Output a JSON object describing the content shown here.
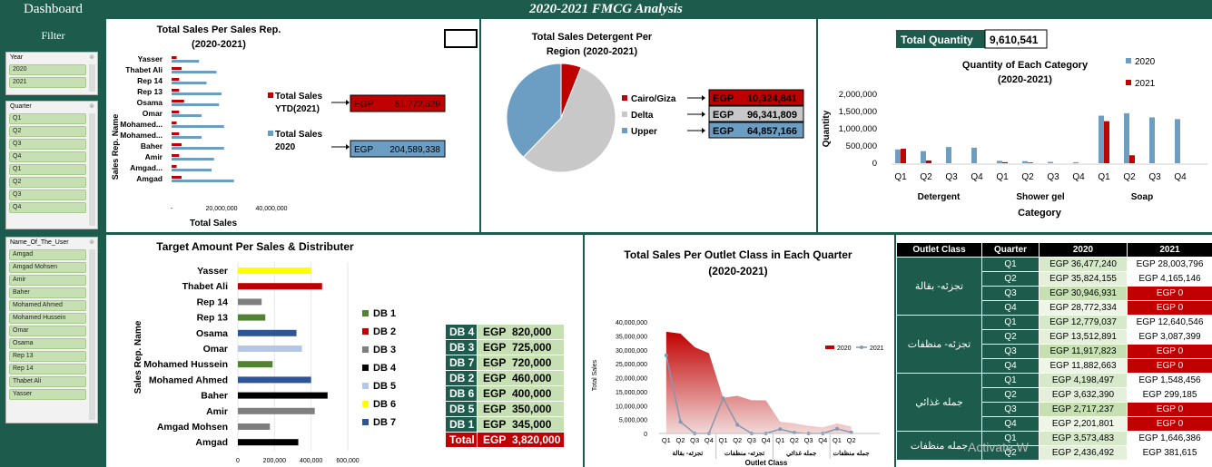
{
  "header": {
    "dashboard_label": "Dashboard",
    "title": "2020-2021 FMCG Analysis"
  },
  "filter": {
    "title": "Filter",
    "year": {
      "label": "Year",
      "items": [
        "2020",
        "2021"
      ]
    },
    "quarter": {
      "label": "Quarter",
      "items": [
        "Q1",
        "Q2",
        "Q3",
        "Q4",
        "Q1",
        "Q2",
        "Q3",
        "Q4"
      ]
    },
    "user": {
      "label": "Name_Of_The_User",
      "items": [
        "Amgad",
        "Amgad Mohsen",
        "Amir",
        "Baher",
        "Mohamed Ahmed",
        "Mohamed Hussein",
        "Omar",
        "Osama",
        "Rep 13",
        "Rep 14",
        "Thabet Ali",
        "Yasser"
      ]
    }
  },
  "colors": {
    "dark_green": "#1d5c4d",
    "red": "#c00000",
    "blue": "#6c9ec4",
    "grey": "#c8c8c8",
    "light_green": "#c6e0b4"
  },
  "kpi": {
    "ytd_label": "Total Sales YTD(2021)",
    "ytd_label_1": "Total Sales",
    "ytd_label_2": "YTD(2021)",
    "ytd_currency": "EGP",
    "ytd_value": "51,772,529",
    "s2020_label_1": "Total Sales",
    "s2020_label_2": "2020",
    "s2020_currency": "EGP",
    "s2020_value": "204,589,338",
    "total_quantity_label": "Total Quantity",
    "total_quantity_value": "9,610,541"
  },
  "region_boxes": [
    {
      "label": "Cairo/Giza",
      "currency": "EGP",
      "value": "10,324,841"
    },
    {
      "label": "Delta",
      "currency": "EGP",
      "value": "96,341,809"
    },
    {
      "label": "Upper",
      "currency": "EGP",
      "value": "64,857,166"
    }
  ],
  "db_table": {
    "rows": [
      {
        "key": "DB 4",
        "currency": "EGP",
        "value": "820,000"
      },
      {
        "key": "DB 3",
        "currency": "EGP",
        "value": "725,000"
      },
      {
        "key": "DB 7",
        "currency": "EGP",
        "value": "720,000"
      },
      {
        "key": "DB 2",
        "currency": "EGP",
        "value": "460,000"
      },
      {
        "key": "DB 6",
        "currency": "EGP",
        "value": "400,000"
      },
      {
        "key": "DB 5",
        "currency": "EGP",
        "value": "350,000"
      },
      {
        "key": "DB 1",
        "currency": "EGP",
        "value": "345,000"
      }
    ],
    "total": {
      "key": "Total",
      "currency": "EGP",
      "value": "3,820,000"
    }
  },
  "outlet_table": {
    "headers": [
      "Outlet Class",
      "Quarter",
      "2020",
      "2021"
    ],
    "groups": [
      {
        "class": "تجزئه- بقالة",
        "rows": [
          {
            "q": "Q1",
            "v2020": "EGP 36,477,240",
            "v2021": "EGP 28,003,796"
          },
          {
            "q": "Q2",
            "v2020": "EGP 35,824,155",
            "v2021": "EGP 4,165,146"
          },
          {
            "q": "Q3",
            "v2020": "EGP 30,946,931",
            "v2021": "EGP 0"
          },
          {
            "q": "Q4",
            "v2020": "EGP 28,772,334",
            "v2021": "EGP 0"
          }
        ]
      },
      {
        "class": "تجزئه- منظفات",
        "rows": [
          {
            "q": "Q1",
            "v2020": "EGP 12,779,037",
            "v2021": "EGP 12,640,546"
          },
          {
            "q": "Q2",
            "v2020": "EGP 13,512,891",
            "v2021": "EGP 3,087,399"
          },
          {
            "q": "Q3",
            "v2020": "EGP 11,917,823",
            "v2021": "EGP 0"
          },
          {
            "q": "Q4",
            "v2020": "EGP 11,882,663",
            "v2021": "EGP 0"
          }
        ]
      },
      {
        "class": "جمله غذائي",
        "rows": [
          {
            "q": "Q1",
            "v2020": "EGP 4,198,497",
            "v2021": "EGP 1,548,456"
          },
          {
            "q": "Q2",
            "v2020": "EGP 3,632,390",
            "v2021": "EGP 299,185"
          },
          {
            "q": "Q3",
            "v2020": "EGP 2,717,237",
            "v2021": "EGP 0"
          },
          {
            "q": "Q4",
            "v2020": "EGP 2,201,801",
            "v2021": "EGP 0"
          }
        ]
      },
      {
        "class": "جمله منظفات",
        "rows": [
          {
            "q": "Q1",
            "v2020": "EGP 3,573,483",
            "v2021": "EGP 1,646,386"
          },
          {
            "q": "Q2",
            "v2020": "EGP 2,436,492",
            "v2021": "EGP 381,615"
          }
        ]
      }
    ]
  },
  "watermark": "Activate W",
  "chart_data": [
    {
      "type": "bar",
      "orientation": "horizontal",
      "title": "Total Sales Per Sales Rep.",
      "subtitle": "(2020-2021)",
      "xlabel": "Total Sales",
      "ylabel": "Sales Rep. Name",
      "categories": [
        "Yasser",
        "Thabet Ali",
        "Rep 14",
        "Rep 13",
        "Osama",
        "Omar",
        "Mohamed...",
        "Mohamed...",
        "Baher",
        "Amir",
        "Amgad...",
        "Amgad"
      ],
      "xlim": [
        0,
        40000000
      ],
      "xticks": [
        "-",
        "20,000,000",
        "40,000,000"
      ],
      "xtick_values": [
        0,
        20000000,
        40000000
      ],
      "series": [
        {
          "name": "Total Sales YTD(2021)",
          "color": "#c00000",
          "values": [
            2000000,
            4000000,
            3000000,
            3000000,
            5000000,
            3000000,
            2000000,
            3000000,
            4000000,
            3000000,
            2000000,
            4000000
          ]
        },
        {
          "name": "Total Sales 2020",
          "color": "#6c9ec4",
          "values": [
            11000000,
            18000000,
            14000000,
            20000000,
            19000000,
            12000000,
            21000000,
            12000000,
            21000000,
            17000000,
            16000000,
            25000000
          ]
        }
      ]
    },
    {
      "type": "pie",
      "title": "Total Sales Detergent Per",
      "subtitle": "Region (2020-2021)",
      "labels": [
        "Cairo/Giza",
        "Delta",
        "Upper"
      ],
      "values": [
        10324841,
        96341809,
        64857166
      ],
      "colors": [
        "#c00000",
        "#c8c8c8",
        "#6c9ec4"
      ]
    },
    {
      "type": "bar",
      "title": "Quantity of Each Category",
      "subtitle": "(2020-2021)",
      "xlabel": "Category",
      "ylabel": "Quantity",
      "groups": [
        "Detergent",
        "Shower gel",
        "Soap"
      ],
      "quarters": [
        "Q1",
        "Q2",
        "Q3",
        "Q4"
      ],
      "ylim": [
        0,
        2000000
      ],
      "yticks": [
        "0",
        "500,000",
        "1,000,000",
        "1,500,000",
        "2,000,000"
      ],
      "ytick_values": [
        0,
        500000,
        1000000,
        1500000,
        2000000
      ],
      "series": [
        {
          "name": "2020",
          "color": "#6c9ec4",
          "values": [
            400000,
            350000,
            470000,
            450000,
            70000,
            60000,
            40000,
            30000,
            1380000,
            1450000,
            1330000,
            1280000
          ]
        },
        {
          "name": "2021",
          "color": "#c00000",
          "values": [
            420000,
            80000,
            0,
            0,
            30000,
            20000,
            0,
            0,
            1220000,
            230000,
            0,
            0
          ]
        }
      ]
    },
    {
      "type": "bar",
      "orientation": "horizontal",
      "title": "Target Amount Per Sales & Distributer",
      "ylabel": "Sales Rep. Name",
      "categories": [
        "Yasser",
        "Thabet Ali",
        "Rep 14",
        "Rep 13",
        "Osama",
        "Omar",
        "Mohamed Hussein",
        "Mohamed Ahmed",
        "Baher",
        "Amir",
        "Amgad Mohsen",
        "Amgad"
      ],
      "values": [
        400000,
        460000,
        130000,
        150000,
        320000,
        350000,
        190000,
        400000,
        490000,
        420000,
        175000,
        330000
      ],
      "distributors": [
        "DB 6",
        "DB 2",
        "DB 3",
        "DB 1",
        "DB 7",
        "DB 5",
        "DB 1",
        "DB 7",
        "DB 4",
        "DB 3",
        "DB 3",
        "DB 4"
      ],
      "xlim": [
        0,
        600000
      ],
      "xticks": [
        "0",
        "200,000",
        "400,000",
        "600,000"
      ],
      "xtick_values": [
        0,
        200000,
        400000,
        600000
      ],
      "legend": [
        {
          "name": "DB 1",
          "color": "#548235"
        },
        {
          "name": "DB 2",
          "color": "#c00000"
        },
        {
          "name": "DB 3",
          "color": "#7f7f7f"
        },
        {
          "name": "DB 4",
          "color": "#000000"
        },
        {
          "name": "DB 5",
          "color": "#b4c7e7"
        },
        {
          "name": "DB 6",
          "color": "#ffff00"
        },
        {
          "name": "DB 7",
          "color": "#2f5597"
        }
      ]
    },
    {
      "type": "area",
      "title": "Total Sales Per Outlet Class in Each Quarter",
      "subtitle": "(2020-2021)",
      "xlabel": "Outlet Class",
      "ylabel": "Total Sales",
      "quarters": [
        "Q1",
        "Q2",
        "Q3",
        "Q4"
      ],
      "classes": [
        "تجزئه- بقالة",
        "تجزئه- منظفات",
        "جمله غذائي",
        "جمله منظفات"
      ],
      "ylim": [
        0,
        40000000
      ],
      "yticks": [
        "0",
        "5,000,000",
        "10,000,000",
        "15,000,000",
        "20,000,000",
        "25,000,000",
        "30,000,000",
        "35,000,000",
        "40,000,000"
      ],
      "ytick_values": [
        0,
        5000000,
        10000000,
        15000000,
        20000000,
        25000000,
        30000000,
        35000000,
        40000000
      ],
      "series": [
        {
          "name": "2020",
          "color": "#c00000",
          "values": [
            36477240,
            35824155,
            30946931,
            28772334,
            12779037,
            13512891,
            11917823,
            11882663,
            4198497,
            3632390,
            2717237,
            2201801,
            3573483,
            2436492
          ]
        },
        {
          "name": "2021",
          "color": "#8497b0",
          "values": [
            28003796,
            4165146,
            0,
            0,
            12640546,
            3087399,
            0,
            0,
            1548456,
            299185,
            0,
            0,
            1646386,
            381615
          ]
        }
      ]
    }
  ]
}
